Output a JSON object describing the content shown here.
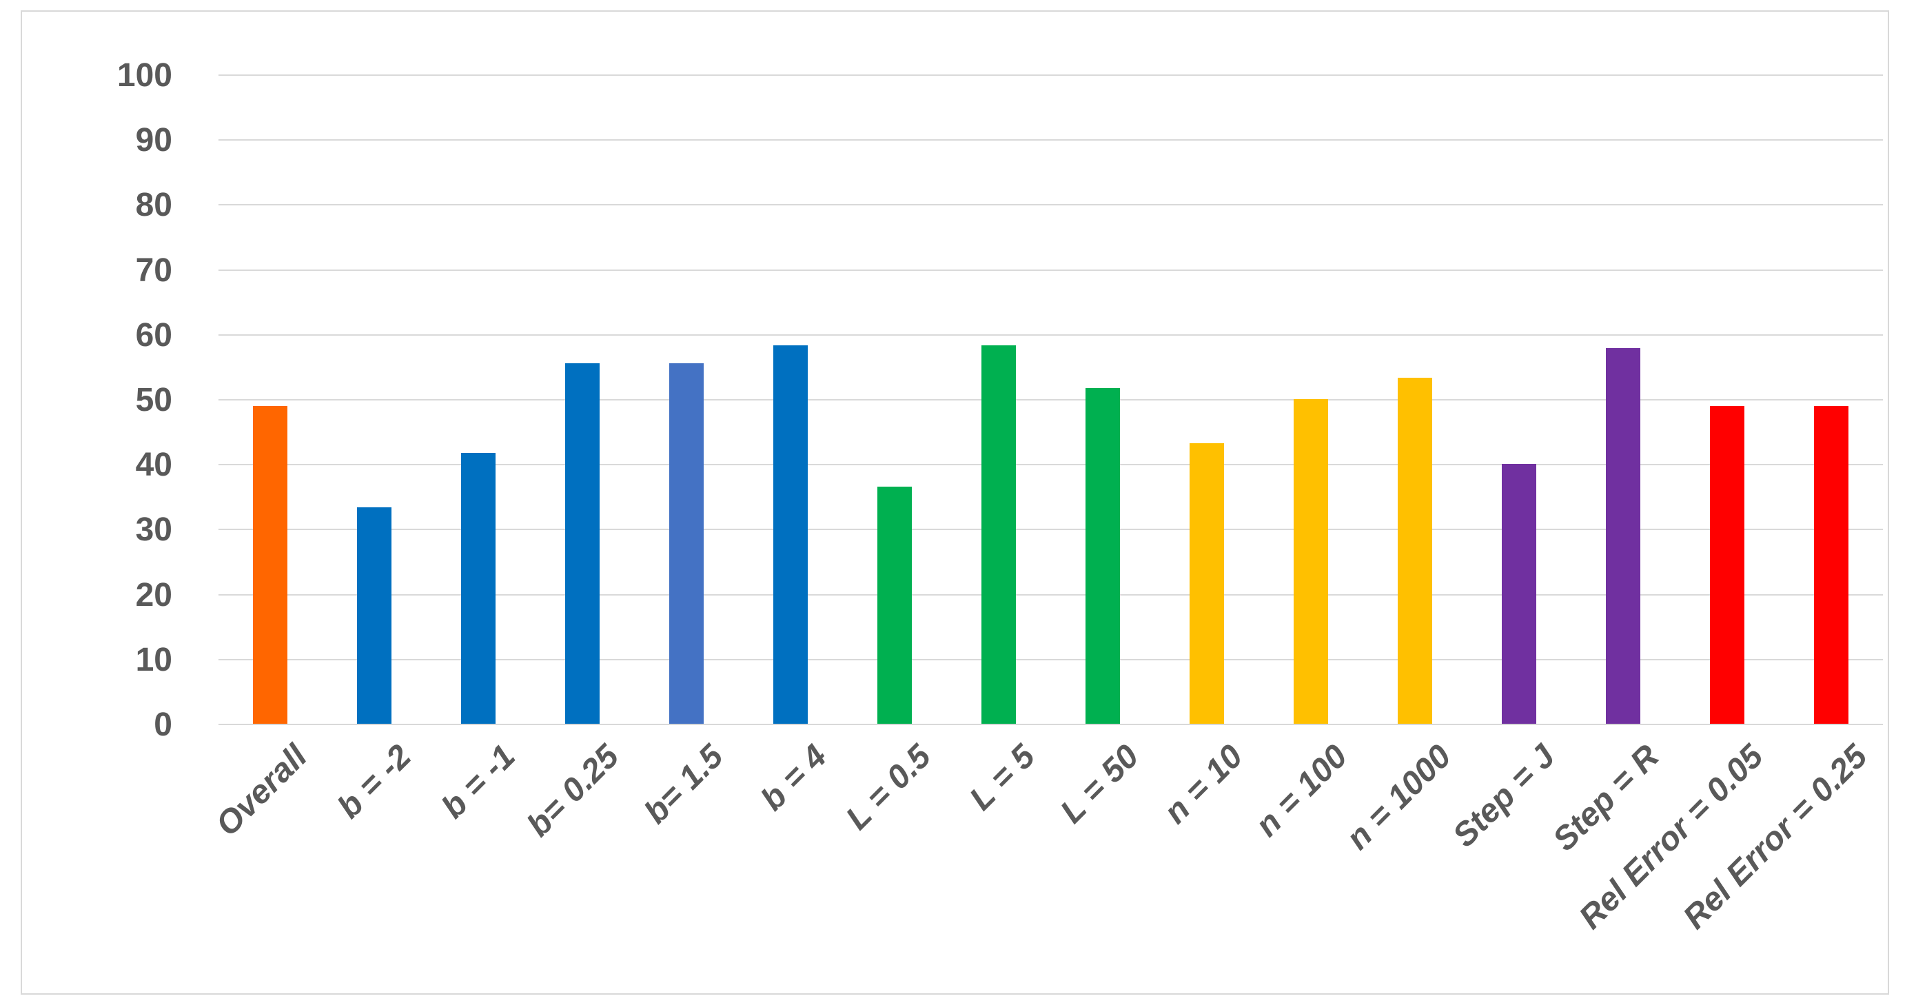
{
  "chart_data": {
    "type": "bar",
    "title": "",
    "xlabel": "",
    "ylabel": "",
    "ylim": [
      0,
      100
    ],
    "yticks": [
      0,
      10,
      20,
      30,
      40,
      50,
      60,
      70,
      80,
      90,
      100
    ],
    "grid": "horizontal",
    "legend": "none",
    "categories": [
      "Overall",
      "b = -2",
      "b = -1",
      "b= 0.25",
      "b= 1.5",
      "b = 4",
      "L = 0.5",
      "L = 5",
      "L = 50",
      "n = 10",
      "n = 100",
      "n = 1000",
      "Step = J",
      "Step = R",
      "Rel Error = 0.05",
      "Rel Error = 0.25"
    ],
    "values": [
      48.9,
      33.3,
      41.7,
      55.5,
      55.5,
      58.3,
      36.5,
      58.3,
      51.7,
      43.2,
      50.0,
      53.3,
      40.0,
      57.9,
      48.9,
      48.9
    ],
    "bar_colors": [
      "#FF6600",
      "#0070C0",
      "#0070C0",
      "#0070C0",
      "#4472C4",
      "#0070C0",
      "#00B050",
      "#00B050",
      "#00B050",
      "#FFC000",
      "#FFC000",
      "#FFC000",
      "#7030A0",
      "#7030A0",
      "#FF0000",
      "#FF0000"
    ],
    "color_legend": {
      "overall": "#FF6600",
      "b_group": "#0070C0",
      "b_1_5_variant": "#4472C4",
      "L_group": "#00B050",
      "n_group": "#FFC000",
      "step_group": "#7030A0",
      "rel_error_group": "#FF0000"
    },
    "gridline_color": "#D9D9D9",
    "axis_label_color": "#595959"
  }
}
